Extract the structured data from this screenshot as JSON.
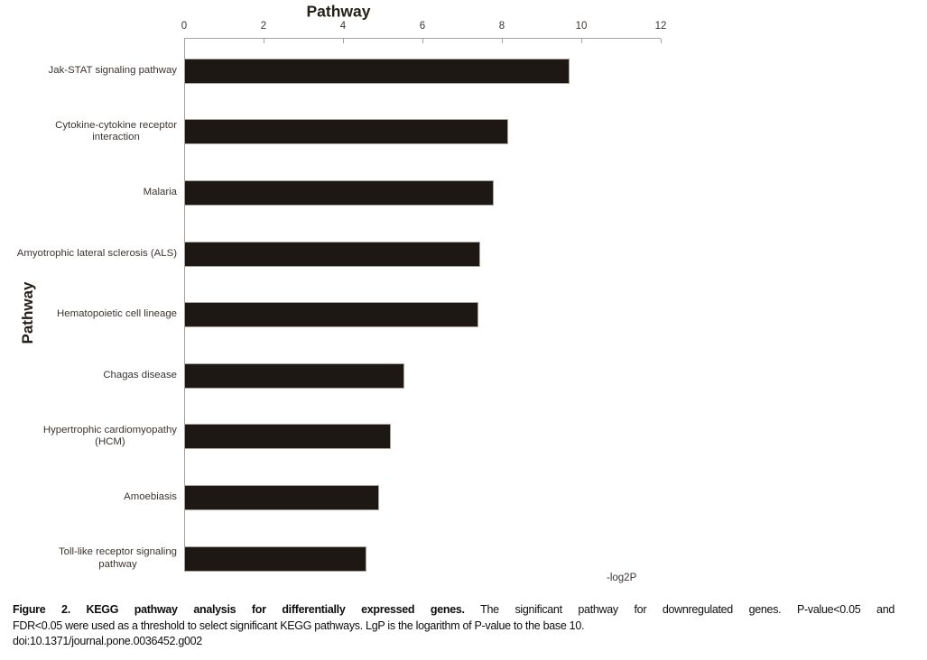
{
  "chart_data": {
    "type": "bar",
    "orientation": "horizontal",
    "title": "Pathway",
    "ylabel": "Pathway",
    "xlabel": "-log2P",
    "xlim": [
      0,
      12
    ],
    "xticks": [
      0,
      2,
      4,
      6,
      8,
      10,
      12
    ],
    "grid": false,
    "legend": "none",
    "categories": [
      "Jak-STAT signaling pathway",
      "Cytokine-cytokine receptor interaction",
      "Malaria",
      "Amyotrophic lateral sclerosis (ALS)",
      "Hematopoietic cell lineage",
      "Chagas disease",
      "Hypertrophic cardiomyopathy (HCM)",
      "Amoebiasis",
      "Toll-like receptor signaling pathway"
    ],
    "categories_wrapped": [
      "Jak-STAT signaling pathway",
      "Cytokine-cytokine receptor\ninteraction",
      "Malaria",
      "Amyotrophic lateral sclerosis (ALS)",
      "Hematopoietic cell lineage",
      "Chagas disease",
      "Hypertrophic cardiomyopathy\n(HCM)",
      "Amoebiasis",
      "Toll-like receptor signaling\npathway"
    ],
    "values": [
      9.7,
      8.15,
      7.8,
      7.45,
      7.4,
      5.55,
      5.2,
      4.9,
      4.6
    ],
    "bar_color": "#1d1814",
    "bar_border_color": "#aba29c",
    "axis_color": "#a8a09b"
  },
  "caption": {
    "line1_bold": "Figure 2. KEGG pathway analysis for differentially expressed genes.",
    "line1_rest": "The significant pathway for downregulated genes. P-value<0.05 and",
    "line2": "FDR<0.05 were used as a threshold to select significant KEGG pathways. LgP is the logarithm of P-value to the base 10.",
    "line3": "doi:10.1371/journal.pone.0036452.g002"
  }
}
